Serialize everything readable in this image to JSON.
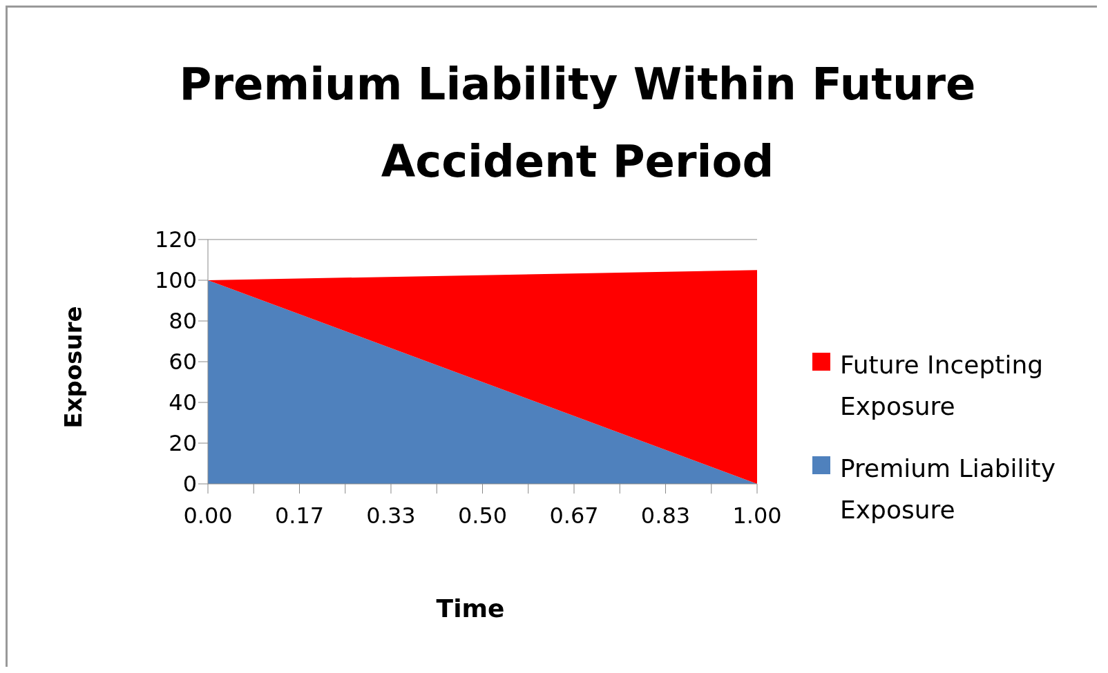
{
  "chart_data": {
    "type": "area",
    "title": "Premium Liability Within Future Accident Period",
    "xlabel": "Time",
    "ylabel": "Exposure",
    "stacked": true,
    "x": [
      0,
      1
    ],
    "series": [
      {
        "name": "Premium Liability Exposure",
        "color": "#4f81bd",
        "values": [
          100,
          0
        ]
      },
      {
        "name": "Future Incepting Exposure",
        "color": "#ff0000",
        "values": [
          0,
          105
        ]
      }
    ],
    "xlim": [
      0,
      1
    ],
    "xticks": [
      {
        "value": 0,
        "label": "0.00"
      },
      {
        "value": 0.0833,
        "label": null
      },
      {
        "value": 0.1667,
        "label": "0.17"
      },
      {
        "value": 0.25,
        "label": null
      },
      {
        "value": 0.3333,
        "label": "0.33"
      },
      {
        "value": 0.4167,
        "label": null
      },
      {
        "value": 0.5,
        "label": "0.50"
      },
      {
        "value": 0.5833,
        "label": null
      },
      {
        "value": 0.6667,
        "label": "0.67"
      },
      {
        "value": 0.75,
        "label": null
      },
      {
        "value": 0.8333,
        "label": "0.83"
      },
      {
        "value": 0.9167,
        "label": null
      },
      {
        "value": 1,
        "label": "1.00"
      }
    ],
    "ylim": [
      0,
      120
    ],
    "yticks": [
      0,
      20,
      40,
      60,
      80,
      100,
      120
    ],
    "legend": "right"
  }
}
